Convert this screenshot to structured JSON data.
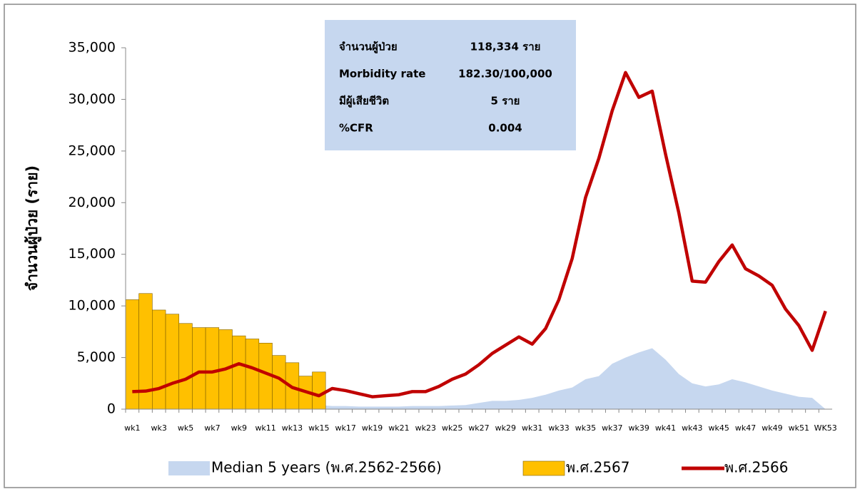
{
  "chart_data": {
    "type": "bar",
    "y_label": "จำนวนผู้ป่วย (ราย)",
    "categories": [
      "wk1",
      null,
      "wk3",
      null,
      "wk5",
      null,
      "wk7",
      null,
      "wk9",
      null,
      "wk11",
      null,
      "wk13",
      null,
      "wk15",
      null,
      "wk17",
      null,
      "wk19",
      null,
      "wk21",
      null,
      "wk23",
      null,
      "wk25",
      null,
      "wk27",
      null,
      "wk29",
      null,
      "wk31",
      null,
      "wk33",
      null,
      "wk35",
      null,
      "wk37",
      null,
      "wk39",
      null,
      "wk41",
      null,
      "wk43",
      null,
      "wk45",
      null,
      "wk47",
      null,
      "wk49",
      null,
      "wk51",
      null,
      "WK53"
    ],
    "series": [
      {
        "name": "Median 5 years (พ.ศ.2562-2566)",
        "kind": "area",
        "color": "#c6d7ef",
        "values": [
          500,
          500,
          500,
          500,
          500,
          500,
          500,
          500,
          500,
          500,
          500,
          500,
          500,
          500,
          400,
          300,
          300,
          250,
          250,
          250,
          250,
          300,
          300,
          300,
          350,
          400,
          600,
          800,
          800,
          900,
          1100,
          1400,
          1800,
          2100,
          2900,
          3200,
          4400,
          5000,
          5500,
          5900,
          4800,
          3400,
          2500,
          2200,
          2400,
          2900,
          2600,
          2200,
          1800,
          1500,
          1200,
          1100,
          0
        ]
      },
      {
        "name": "พ.ศ.2567",
        "kind": "bar",
        "color": "#ffc000",
        "values": [
          10600,
          11200,
          9600,
          9200,
          8300,
          7900,
          7900,
          7700,
          7100,
          6800,
          6400,
          5200,
          4500,
          3200,
          3600,
          null,
          null,
          null,
          null,
          null,
          null,
          null,
          null,
          null,
          null,
          null,
          null,
          null,
          null,
          null,
          null,
          null,
          null,
          null,
          null,
          null,
          null,
          null,
          null,
          null,
          null,
          null,
          null,
          null,
          null,
          null,
          null,
          null,
          null,
          null,
          null,
          null,
          null
        ]
      },
      {
        "name": "พ.ศ.2566",
        "kind": "line",
        "color": "#c00000",
        "values": [
          1700,
          1750,
          2000,
          2500,
          2900,
          3600,
          3600,
          3900,
          4400,
          4000,
          3500,
          3000,
          2100,
          1700,
          1300,
          2000,
          1800,
          1500,
          1200,
          1300,
          1400,
          1700,
          1700,
          2200,
          2900,
          3400,
          4300,
          5400,
          6200,
          7000,
          6300,
          7800,
          10600,
          14600,
          20500,
          24300,
          28900,
          32600,
          30200,
          30800,
          24700,
          19000,
          12400,
          12300,
          14300,
          15900,
          13600,
          12900,
          12000,
          9700,
          8100,
          5700,
          9500
        ]
      }
    ],
    "ylim": [
      0,
      35000
    ],
    "yticks": [
      0,
      {
        "value": 5000,
        "label": "5,000"
      },
      {
        "value": 10000,
        "label": "10,000"
      },
      {
        "value": 15000,
        "label": "15,000"
      },
      {
        "value": 20000,
        "label": "20,000"
      },
      {
        "value": 25000,
        "label": "25,000"
      },
      {
        "value": 30000,
        "label": "30,000"
      },
      {
        "value": 35000,
        "label": "35,000"
      }
    ],
    "info_box": [
      [
        "จำนวนผู้ป่วย",
        "118,334 ราย"
      ],
      [
        "Morbidity rate",
        "182.30/100,000"
      ],
      [
        "มีผู้เสียชีวิต",
        "5 ราย"
      ],
      [
        "%CFR",
        "0.004"
      ]
    ]
  }
}
